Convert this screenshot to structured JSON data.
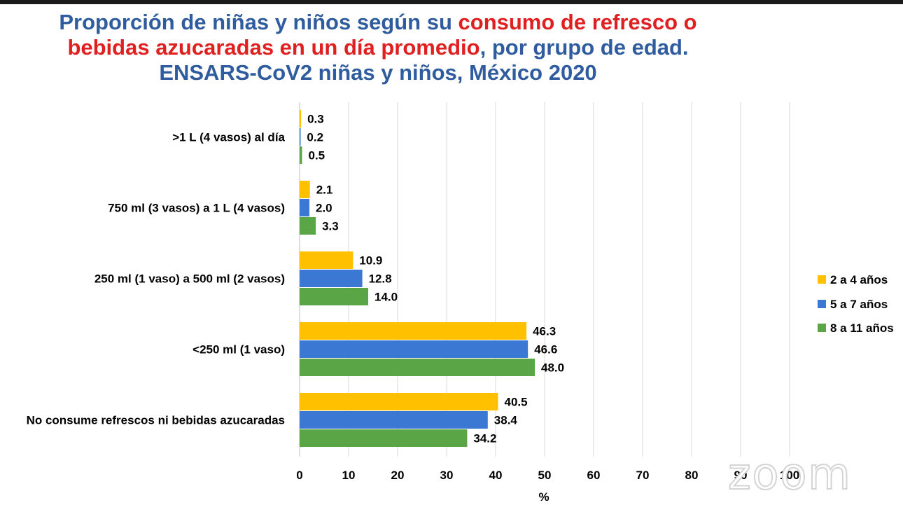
{
  "title": {
    "line1_a": "Proporción de niñas y niños según su ",
    "line1_b": "consumo de refresco o",
    "line2_a": "bebidas azucaradas en un día promedio",
    "line2_b": ", por grupo de edad.",
    "line3": "ENSARS-CoV2 niñas y niños, México 2020"
  },
  "watermark": "zoom",
  "chart_data": {
    "type": "bar",
    "orientation": "horizontal",
    "categories": [
      ">1 L (4 vasos) al día",
      "750 ml (3 vasos) a 1 L (4 vasos)",
      "250 ml (1 vaso) a 500 ml (2 vasos)",
      "<250 ml (1 vaso)",
      "No consume refrescos ni bebidas azucaradas"
    ],
    "series": [
      {
        "name": "2 a 4 años",
        "color": "#ffc000",
        "values": [
          0.3,
          2.1,
          10.9,
          46.3,
          40.5
        ]
      },
      {
        "name": "5 a 7 años",
        "color": "#3a78d4",
        "values": [
          0.2,
          2.0,
          12.8,
          46.6,
          38.4
        ]
      },
      {
        "name": "8 a 11 años",
        "color": "#5aa546",
        "values": [
          0.5,
          3.3,
          14.0,
          48.0,
          34.2
        ]
      }
    ],
    "xlabel": "%",
    "xlim": [
      0,
      100
    ],
    "xticks": [
      "0",
      "10",
      "20",
      "30",
      "40",
      "50",
      "60",
      "70",
      "80",
      "90",
      "100"
    ],
    "grid": true,
    "legend_position": "right",
    "data_labels": true
  }
}
